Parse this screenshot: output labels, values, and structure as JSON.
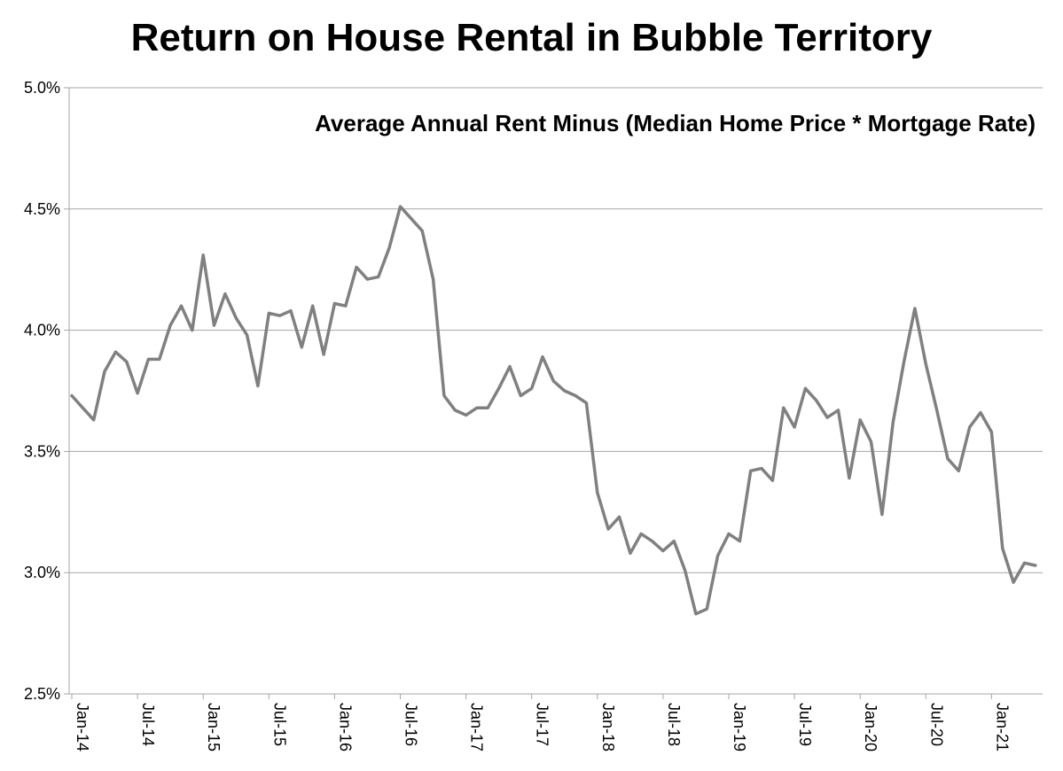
{
  "chart_data": {
    "type": "line",
    "title": "Return on House Rental in Bubble Territory",
    "annotation": "Average Annual Rent Minus (Median Home Price * Mortgage Rate)",
    "xlabel": "",
    "ylabel": "",
    "ylim": [
      2.5,
      5.0
    ],
    "y_ticks": [
      {
        "value": 2.5,
        "label": "2.5%"
      },
      {
        "value": 3.0,
        "label": "3.0%"
      },
      {
        "value": 3.5,
        "label": "3.5%"
      },
      {
        "value": 4.0,
        "label": "4.0%"
      },
      {
        "value": 4.5,
        "label": "4.5%"
      },
      {
        "value": 5.0,
        "label": "5.0%"
      }
    ],
    "x_tick_labels": [
      "Jan-14",
      "Jul-14",
      "Jan-15",
      "Jul-15",
      "Jan-16",
      "Jul-16",
      "Jan-17",
      "Jul-17",
      "Jan-18",
      "Jul-18",
      "Jan-19",
      "Jul-19",
      "Jan-20",
      "Jul-20",
      "Jan-21"
    ],
    "grid": true,
    "line_color": "#808080",
    "series": [
      {
        "values": [
          3.73,
          3.68,
          3.63,
          3.83,
          3.91,
          3.87,
          3.74,
          3.88,
          3.88,
          4.02,
          4.1,
          4.0,
          4.31,
          4.02,
          4.15,
          4.05,
          3.98,
          3.77,
          4.07,
          4.06,
          4.08,
          3.93,
          4.1,
          3.9,
          4.11,
          4.1,
          4.26,
          4.21,
          4.22,
          4.34,
          4.51,
          4.46,
          4.41,
          4.21,
          3.73,
          3.67,
          3.65,
          3.68,
          3.68,
          3.76,
          3.85,
          3.73,
          3.76,
          3.89,
          3.79,
          3.75,
          3.73,
          3.7,
          3.33,
          3.18,
          3.23,
          3.08,
          3.16,
          3.13,
          3.09,
          3.13,
          3.01,
          2.83,
          2.85,
          3.07,
          3.16,
          3.13,
          3.42,
          3.43,
          3.38,
          3.68,
          3.6,
          3.76,
          3.71,
          3.64,
          3.67,
          3.39,
          3.63,
          3.54,
          3.24,
          3.62,
          3.87,
          4.09,
          3.86,
          3.67,
          3.47,
          3.42,
          3.6,
          3.66,
          3.58,
          3.1,
          2.96,
          3.04,
          3.03
        ]
      }
    ]
  }
}
